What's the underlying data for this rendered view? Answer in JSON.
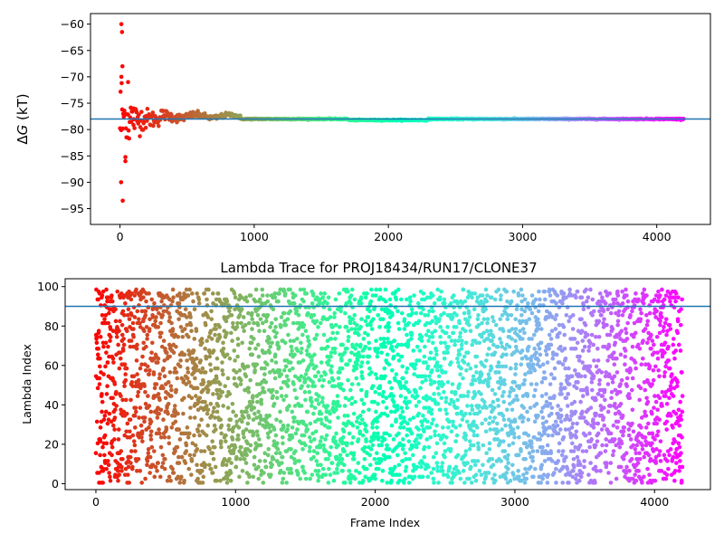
{
  "chart_data": [
    {
      "type": "scatter",
      "title": "",
      "xlabel": "",
      "ylabel": "ΔG (kT)",
      "xlim": [
        -220,
        4400
      ],
      "ylim": [
        -98,
        -58
      ],
      "xticks": [
        0,
        1000,
        2000,
        3000,
        4000
      ],
      "yticks": [
        -95,
        -90,
        -85,
        -80,
        -75,
        -70,
        -65,
        -60
      ],
      "reference_line": {
        "y": -78,
        "color": "#1f77b4"
      },
      "colormap": "rainbow (red at frame 0 to violet at frame 4200)",
      "n_frames": 4200,
      "description_of_points": "Running free-energy estimate per frame: large scatter (-93.5 to -60) in first ~100 frames, converging to about -78 by frame ~1000 and flat thereafter",
      "sample_points": [
        {
          "x": 10,
          "y": -60
        },
        {
          "x": 15,
          "y": -61.5
        },
        {
          "x": 18,
          "y": -68
        },
        {
          "x": 10,
          "y": -70
        },
        {
          "x": 12,
          "y": -80
        },
        {
          "x": 8,
          "y": -90
        },
        {
          "x": 20,
          "y": -93.5
        },
        {
          "x": 40,
          "y": -86
        },
        {
          "x": 60,
          "y": -71
        },
        {
          "x": 100,
          "y": -76
        },
        {
          "x": 200,
          "y": -77.5
        },
        {
          "x": 500,
          "y": -77.2
        },
        {
          "x": 1000,
          "y": -77.8
        },
        {
          "x": 2000,
          "y": -78.2
        },
        {
          "x": 3000,
          "y": -78
        },
        {
          "x": 4200,
          "y": -78
        }
      ]
    },
    {
      "type": "scatter",
      "title": "Lambda Trace for PROJ18434/RUN17/CLONE37",
      "xlabel": "Frame Index",
      "ylabel": "Lambda Index",
      "xlim": [
        -220,
        4400
      ],
      "ylim": [
        -3,
        104
      ],
      "xticks": [
        0,
        1000,
        2000,
        3000,
        4000
      ],
      "yticks": [
        0,
        20,
        40,
        60,
        80,
        100
      ],
      "reference_line": {
        "y": 90,
        "color": "#1f77b4"
      },
      "colormap": "rainbow (red at frame 0 to violet at frame 4200)",
      "n_frames": 4200,
      "description_of_points": "Lambda index visited at each frame, roughly uniformly spread over 0-99 across all 4200 frames"
    }
  ]
}
